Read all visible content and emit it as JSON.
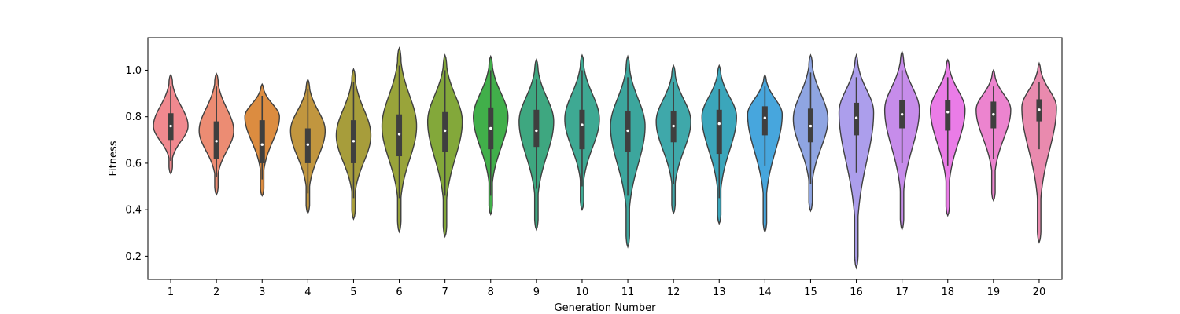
{
  "chart_data": {
    "type": "violin",
    "title": "",
    "xlabel": "Generation Number",
    "ylabel": "Fitness",
    "ylim": [
      0.1,
      1.14
    ],
    "yticks": [
      0.2,
      0.4,
      0.6,
      0.8,
      1.0
    ],
    "ytick_labels": [
      "0.2",
      "0.4",
      "0.6",
      "0.8",
      "1.0"
    ],
    "grid": false,
    "legend": "none",
    "categories": [
      "1",
      "2",
      "3",
      "4",
      "5",
      "6",
      "7",
      "8",
      "9",
      "10",
      "11",
      "12",
      "13",
      "14",
      "15",
      "16",
      "17",
      "18",
      "19",
      "20"
    ],
    "colors": [
      "#f0898f",
      "#ec8c73",
      "#dc8c40",
      "#c1963f",
      "#a79d3b",
      "#99a43a",
      "#83a83a",
      "#41af4a",
      "#3ea780",
      "#3ea993",
      "#3ca69d",
      "#3fa8aa",
      "#3ba6bb",
      "#47a6dd",
      "#8fa5e2",
      "#ac9eec",
      "#c68cea",
      "#ea7ce7",
      "#ec84cf",
      "#e98aae"
    ],
    "series": [
      {
        "category": "1",
        "min": 0.555,
        "q1": 0.7,
        "median": 0.76,
        "q3": 0.815,
        "max": 0.98,
        "whisker_low": 0.61,
        "whisker_high": 0.93,
        "mode": 0.76,
        "peak": 0.8
      },
      {
        "category": "2",
        "min": 0.465,
        "q1": 0.62,
        "median": 0.695,
        "q3": 0.78,
        "max": 0.985,
        "whisker_low": 0.54,
        "whisker_high": 0.93,
        "mode": 0.74,
        "peak": 0.55
      },
      {
        "category": "3",
        "min": 0.46,
        "q1": 0.6,
        "median": 0.68,
        "q3": 0.785,
        "max": 0.94,
        "whisker_low": 0.53,
        "whisker_high": 0.89,
        "mode": 0.8,
        "peak": 0.55
      },
      {
        "category": "4",
        "min": 0.385,
        "q1": 0.6,
        "median": 0.68,
        "q3": 0.75,
        "max": 0.96,
        "whisker_low": 0.47,
        "whisker_high": 0.92,
        "mode": 0.74,
        "peak": 0.55
      },
      {
        "category": "5",
        "min": 0.36,
        "q1": 0.6,
        "median": 0.695,
        "q3": 0.785,
        "max": 1.005,
        "whisker_low": 0.45,
        "whisker_high": 0.95,
        "mode": 0.72,
        "peak": 0.5
      },
      {
        "category": "6",
        "min": 0.305,
        "q1": 0.63,
        "median": 0.725,
        "q3": 0.81,
        "max": 1.095,
        "whisker_low": 0.45,
        "whisker_high": 1.02,
        "mode": 0.76,
        "peak": 0.6
      },
      {
        "category": "7",
        "min": 0.285,
        "q1": 0.65,
        "median": 0.74,
        "q3": 0.82,
        "max": 1.065,
        "whisker_low": 0.46,
        "whisker_high": 1.0,
        "mode": 0.78,
        "peak": 0.55
      },
      {
        "category": "8",
        "min": 0.38,
        "q1": 0.66,
        "median": 0.75,
        "q3": 0.84,
        "max": 1.06,
        "whisker_low": 0.46,
        "whisker_high": 1.0,
        "mode": 0.8,
        "peak": 0.55
      },
      {
        "category": "9",
        "min": 0.315,
        "q1": 0.67,
        "median": 0.74,
        "q3": 0.83,
        "max": 1.045,
        "whisker_low": 0.49,
        "whisker_high": 0.96,
        "mode": 0.78,
        "peak": 0.6
      },
      {
        "category": "10",
        "min": 0.4,
        "q1": 0.66,
        "median": 0.765,
        "q3": 0.83,
        "max": 1.065,
        "whisker_low": 0.5,
        "whisker_high": 1.0,
        "mode": 0.79,
        "peak": 0.6
      },
      {
        "category": "11",
        "min": 0.24,
        "q1": 0.65,
        "median": 0.74,
        "q3": 0.825,
        "max": 1.06,
        "whisker_low": 0.46,
        "whisker_high": 0.97,
        "mode": 0.76,
        "peak": 0.6
      },
      {
        "category": "12",
        "min": 0.385,
        "q1": 0.69,
        "median": 0.76,
        "q3": 0.825,
        "max": 1.02,
        "whisker_low": 0.51,
        "whisker_high": 0.95,
        "mode": 0.78,
        "peak": 0.65
      },
      {
        "category": "13",
        "min": 0.34,
        "q1": 0.64,
        "median": 0.77,
        "q3": 0.83,
        "max": 1.02,
        "whisker_low": 0.45,
        "whisker_high": 0.92,
        "mode": 0.8,
        "peak": 0.6
      },
      {
        "category": "14",
        "min": 0.305,
        "q1": 0.72,
        "median": 0.795,
        "q3": 0.845,
        "max": 0.98,
        "whisker_low": 0.59,
        "whisker_high": 0.93,
        "mode": 0.81,
        "peak": 0.65
      },
      {
        "category": "15",
        "min": 0.395,
        "q1": 0.69,
        "median": 0.76,
        "q3": 0.835,
        "max": 1.065,
        "whisker_low": 0.51,
        "whisker_high": 0.99,
        "mode": 0.79,
        "peak": 0.6
      },
      {
        "category": "16",
        "min": 0.15,
        "q1": 0.72,
        "median": 0.795,
        "q3": 0.86,
        "max": 1.065,
        "whisker_low": 0.56,
        "whisker_high": 0.97,
        "mode": 0.82,
        "peak": 0.6
      },
      {
        "category": "17",
        "min": 0.315,
        "q1": 0.75,
        "median": 0.81,
        "q3": 0.87,
        "max": 1.08,
        "whisker_low": 0.6,
        "whisker_high": 1.0,
        "mode": 0.83,
        "peak": 0.6
      },
      {
        "category": "18",
        "min": 0.375,
        "q1": 0.74,
        "median": 0.82,
        "q3": 0.87,
        "max": 1.045,
        "whisker_low": 0.59,
        "whisker_high": 0.97,
        "mode": 0.83,
        "peak": 0.65
      },
      {
        "category": "19",
        "min": 0.44,
        "q1": 0.75,
        "median": 0.81,
        "q3": 0.865,
        "max": 1.0,
        "whisker_low": 0.62,
        "whisker_high": 0.93,
        "mode": 0.83,
        "peak": 0.65
      },
      {
        "category": "20",
        "min": 0.26,
        "q1": 0.78,
        "median": 0.83,
        "q3": 0.875,
        "max": 1.03,
        "whisker_low": 0.66,
        "whisker_high": 0.95,
        "mode": 0.84,
        "peak": 0.72
      }
    ]
  }
}
